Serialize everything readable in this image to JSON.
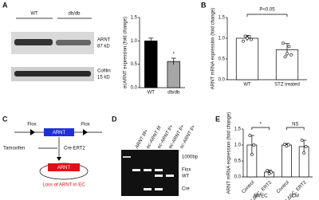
{
  "panel_labels": [
    "A",
    "B",
    "C",
    "D",
    "E"
  ],
  "blot": {
    "groups": [
      "WT",
      "db/db"
    ],
    "bands": [
      {
        "name": "ARNT",
        "size": "87 kD"
      },
      {
        "name": "Cofilin",
        "size": "15 kD"
      }
    ]
  },
  "diagram": {
    "flox_left": "Flox",
    "flox_right": "Flox",
    "gene": "ARNT",
    "treatment": "Tamoxifen",
    "driver": "Cre-ERT2",
    "gene_after": "ARNT",
    "result": "Loss of ARNT in EC"
  },
  "gel": {
    "lanes": [
      "ARNT f/f+",
      "ec-ARNT f/f",
      "ec-ARNT f/+",
      "ec-ARNT f/+",
      "sc-ARNT f/+"
    ],
    "ladder": "1000bp",
    "bands": [
      "Flox",
      "WT",
      "Cre"
    ]
  },
  "chart_data": [
    {
      "type": "bar",
      "y_label": "ecARNT expression (fold change)",
      "categories": [
        "WT",
        "db/db"
      ],
      "values": [
        1.0,
        0.56
      ],
      "errors": [
        0.06,
        0.07
      ],
      "colors": [
        "#000000",
        "#a6a6a6"
      ],
      "ylim": [
        0,
        1.5
      ],
      "yticks": [
        {
          "value": 0,
          "label": "0.0"
        },
        {
          "value": 0.5,
          "label": "0.5"
        },
        {
          "value": 1,
          "label": "1.0"
        },
        {
          "value": 1.5,
          "label": "1.5"
        }
      ],
      "annotations": [
        "*"
      ]
    },
    {
      "type": "bar",
      "y_label": "ARNT mRNA expression (fold change)",
      "categories": [
        "WT",
        "STZ treated"
      ],
      "values": [
        1.0,
        0.72
      ],
      "errors": [
        0.07,
        0.15
      ],
      "colors": [
        "#ffffff",
        "#ffffff"
      ],
      "points": [
        [
          0.93,
          1.05,
          1.0,
          1.04,
          0.97
        ],
        [
          0.88,
          0.55,
          0.63,
          0.8,
          0.6
        ]
      ],
      "ylim": [
        0,
        1.5
      ],
      "yticks": [
        {
          "value": 0,
          "label": "0.0"
        },
        {
          "value": 0.5,
          "label": "0.5"
        },
        {
          "value": 1,
          "label": "1.0"
        },
        {
          "value": 1.5,
          "label": "1.5"
        }
      ],
      "annotations": [
        "P<0.05"
      ]
    },
    {
      "type": "bar",
      "y_label": "ARNT mRNA expression (fold change)",
      "groups": [
        "MVEC",
        "CM"
      ],
      "categories": [
        "Control",
        "Arnt ΔEC, ERT2",
        "Control",
        "Arnt ΔEC, ERT2"
      ],
      "values": [
        1.0,
        0.15,
        1.0,
        0.95
      ],
      "errors": [
        0.3,
        0.06,
        0.05,
        0.2
      ],
      "colors": [
        "#ffffff",
        "#ffffff",
        "#ffffff",
        "#ffffff"
      ],
      "points": [
        [
          1.3,
          0.7,
          1.0
        ],
        [
          0.2,
          0.1,
          0.15
        ],
        [
          1.02,
          0.97,
          1.01
        ],
        [
          1.15,
          0.75,
          0.95
        ]
      ],
      "ylim": [
        0,
        1.5
      ],
      "yticks": [
        {
          "value": 0,
          "label": "0.0"
        },
        {
          "value": 0.5,
          "label": "0.5"
        },
        {
          "value": 1,
          "label": "1.0"
        },
        {
          "value": 1.5,
          "label": "1.5"
        }
      ],
      "annotations": [
        "*",
        "NS"
      ]
    }
  ]
}
